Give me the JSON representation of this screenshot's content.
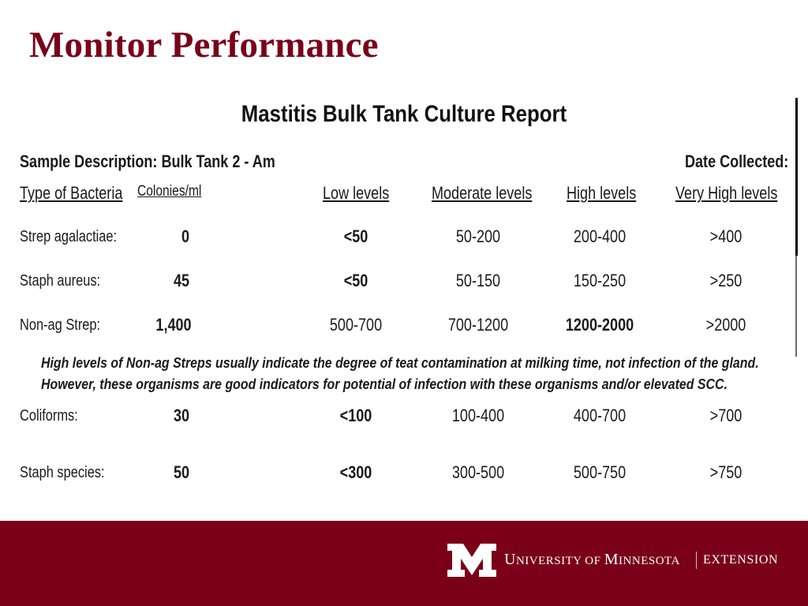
{
  "slide": {
    "title": "Monitor Performance"
  },
  "report": {
    "title": "Mastitis Bulk Tank Culture Report",
    "sample_description": "Sample Description: Bulk Tank 2 - Am",
    "date_collected": "Date Collected:",
    "headers": {
      "type": "Type of Bacteria",
      "colonies": "Colonies/ml",
      "low": "Low levels",
      "moderate": "Moderate levels",
      "high": "High levels",
      "very_high": "Very High levels"
    },
    "rows": [
      {
        "name": "Strep agalactiae:",
        "colonies": "0",
        "low": "<50",
        "moderate": "50-200",
        "high": "200-400",
        "very_high": ">400"
      },
      {
        "name": "Staph aureus:",
        "colonies": "45",
        "low": "<50",
        "moderate": "50-150",
        "high": "150-250",
        "very_high": ">250"
      },
      {
        "name": "Non-ag Strep:",
        "colonies": "1,400",
        "low": "500-700",
        "moderate": "700-1200",
        "high": "1200-2000",
        "very_high": ">2000"
      },
      {
        "name": "Coliforms:",
        "colonies": "30",
        "low": "<100",
        "moderate": "100-400",
        "high": "400-700",
        "very_high": ">700"
      },
      {
        "name": "Staph species:",
        "colonies": "50",
        "low": "<300",
        "moderate": "300-500",
        "high": "500-750",
        "very_high": ">750"
      }
    ],
    "note": {
      "line1": "High levels of Non-ag Streps usually indicate the degree of teat contamination at milking time, not infection of the gland.",
      "line2": "However, these organisms are good indicators for potential of infection with these organisms and/or elevated SCC."
    }
  },
  "footer": {
    "logo_icon": "university-of-minnesota-m-logo",
    "university_u": "U",
    "university_rest1": "NIVERSITY OF ",
    "university_m": "M",
    "university_rest2": "INNESOTA",
    "extension": "EXTENSION",
    "bg_color": "#7a0019"
  }
}
